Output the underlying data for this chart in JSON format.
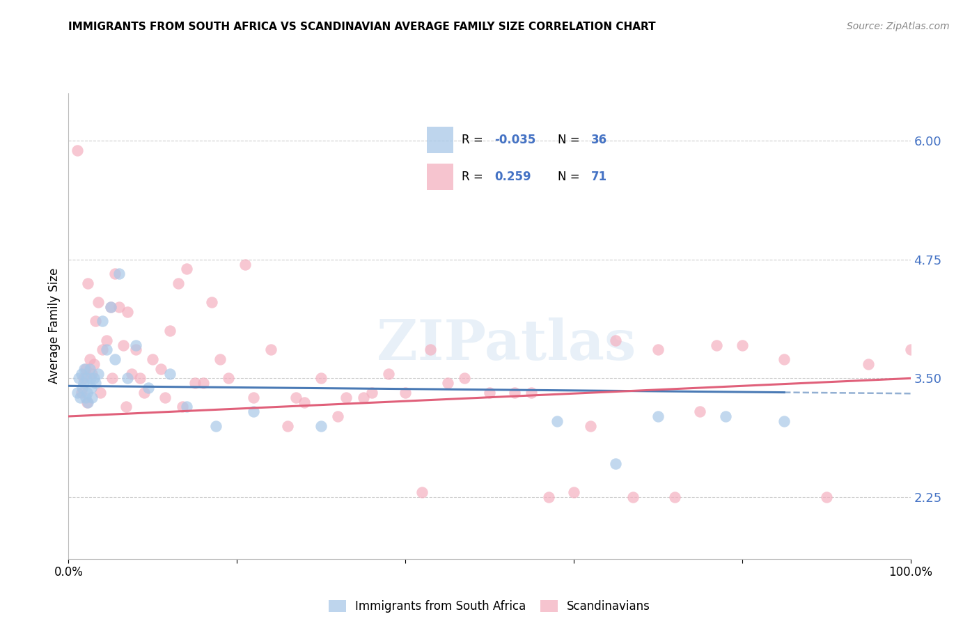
{
  "title": "IMMIGRANTS FROM SOUTH AFRICA VS SCANDINAVIAN AVERAGE FAMILY SIZE CORRELATION CHART",
  "source": "Source: ZipAtlas.com",
  "ylabel": "Average Family Size",
  "yticks_right": [
    2.25,
    3.5,
    4.75,
    6.0
  ],
  "xmin": 0.0,
  "xmax": 100.0,
  "ymin": 1.6,
  "ymax": 6.5,
  "blue_R": -0.035,
  "blue_N": 36,
  "pink_R": 0.259,
  "pink_N": 71,
  "blue_color": "#a8c8e8",
  "pink_color": "#f4b0c0",
  "blue_line_color": "#4a7ab5",
  "pink_line_color": "#e0607a",
  "legend_label_blue": "Immigrants from South Africa",
  "legend_label_pink": "Scandinavians",
  "blue_line_intercept": 3.42,
  "blue_line_slope": -0.0008,
  "pink_line_intercept": 3.1,
  "pink_line_slope": 0.004,
  "blue_x": [
    1.0,
    1.2,
    1.4,
    1.5,
    1.6,
    1.8,
    1.9,
    2.0,
    2.1,
    2.2,
    2.3,
    2.5,
    2.6,
    2.7,
    2.8,
    3.0,
    3.2,
    3.5,
    4.0,
    4.5,
    5.0,
    5.5,
    6.0,
    7.0,
    8.0,
    9.5,
    12.0,
    14.0,
    17.5,
    22.0,
    30.0,
    58.0,
    65.0,
    70.0,
    78.0,
    85.0
  ],
  "blue_y": [
    3.35,
    3.5,
    3.3,
    3.55,
    3.4,
    3.45,
    3.6,
    3.3,
    3.5,
    3.35,
    3.25,
    3.6,
    3.5,
    3.4,
    3.3,
    3.5,
    3.45,
    3.55,
    4.1,
    3.8,
    4.25,
    3.7,
    4.6,
    3.5,
    3.85,
    3.4,
    3.55,
    3.2,
    3.0,
    3.15,
    3.0,
    3.05,
    2.6,
    3.1,
    3.1,
    3.05
  ],
  "pink_x": [
    1.0,
    1.5,
    1.8,
    2.0,
    2.2,
    2.5,
    2.8,
    3.0,
    3.2,
    3.5,
    4.0,
    4.5,
    5.0,
    5.5,
    6.0,
    6.5,
    7.0,
    7.5,
    8.0,
    9.0,
    10.0,
    11.0,
    12.0,
    13.0,
    14.0,
    15.0,
    17.0,
    19.0,
    21.0,
    24.0,
    27.0,
    30.0,
    33.0,
    36.0,
    40.0,
    43.0,
    47.0,
    50.0,
    55.0,
    60.0,
    65.0,
    70.0,
    75.0,
    80.0,
    85.0,
    90.0,
    95.0,
    100.0,
    2.3,
    3.8,
    5.2,
    6.8,
    8.5,
    11.5,
    13.5,
    16.0,
    18.0,
    22.0,
    26.0,
    28.0,
    32.0,
    35.0,
    38.0,
    42.0,
    45.0,
    53.0,
    57.0,
    62.0,
    67.0,
    72.0,
    77.0
  ],
  "pink_y": [
    5.9,
    3.35,
    3.5,
    3.6,
    3.25,
    3.7,
    3.55,
    3.65,
    4.1,
    4.3,
    3.8,
    3.9,
    4.25,
    4.6,
    4.25,
    3.85,
    4.2,
    3.55,
    3.8,
    3.35,
    3.7,
    3.6,
    4.0,
    4.5,
    4.65,
    3.45,
    4.3,
    3.5,
    4.7,
    3.8,
    3.3,
    3.5,
    3.3,
    3.35,
    3.35,
    3.8,
    3.5,
    3.35,
    3.35,
    2.3,
    3.9,
    3.8,
    3.15,
    3.85,
    3.7,
    2.25,
    3.65,
    3.8,
    4.5,
    3.35,
    3.5,
    3.2,
    3.5,
    3.3,
    3.2,
    3.45,
    3.7,
    3.3,
    3.0,
    3.25,
    3.1,
    3.3,
    3.55,
    2.3,
    3.45,
    3.35,
    2.25,
    3.0,
    2.25,
    2.25,
    3.85
  ]
}
